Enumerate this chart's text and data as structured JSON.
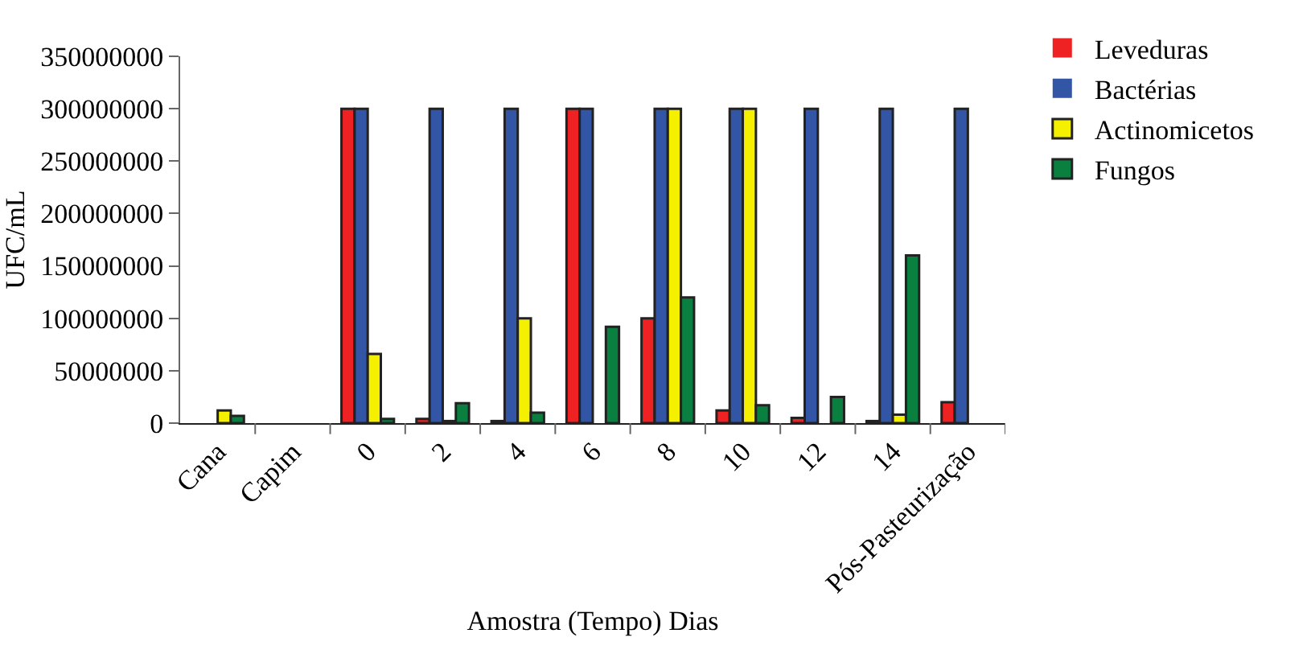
{
  "chart_data": {
    "type": "bar",
    "xlabel": "Amostra (Tempo) Dias",
    "ylabel": "UFC/mL",
    "categories": [
      "Cana",
      "Capim",
      "0",
      "2",
      "4",
      "6",
      "8",
      "10",
      "12",
      "14",
      "Pós-Pasteurização"
    ],
    "series": [
      {
        "name": "Leveduras",
        "color": "#ee2222",
        "values": [
          0,
          0,
          300000000,
          4000000,
          2000000,
          300000000,
          100000000,
          12000000,
          5000000,
          2000000,
          20000000
        ]
      },
      {
        "name": "Bactérias",
        "color": "#3355a5",
        "values": [
          0,
          0,
          300000000,
          300000000,
          300000000,
          300000000,
          300000000,
          300000000,
          300000000,
          300000000,
          300000000
        ]
      },
      {
        "name": "Actinomicetos",
        "color": "#f5ef00",
        "values": [
          12000000,
          0,
          66000000,
          2000000,
          100000000,
          0,
          300000000,
          300000000,
          0,
          8000000,
          0
        ]
      },
      {
        "name": "Fungos",
        "color": "#0a8040",
        "values": [
          7000000,
          0,
          4000000,
          19000000,
          10000000,
          92000000,
          120000000,
          17000000,
          25000000,
          160000000,
          0
        ]
      }
    ],
    "ylim": [
      0,
      350000000
    ],
    "yticks": [
      0,
      50000000,
      100000000,
      150000000,
      200000000,
      250000000,
      300000000,
      350000000
    ],
    "grid": false,
    "legend": "top right"
  }
}
